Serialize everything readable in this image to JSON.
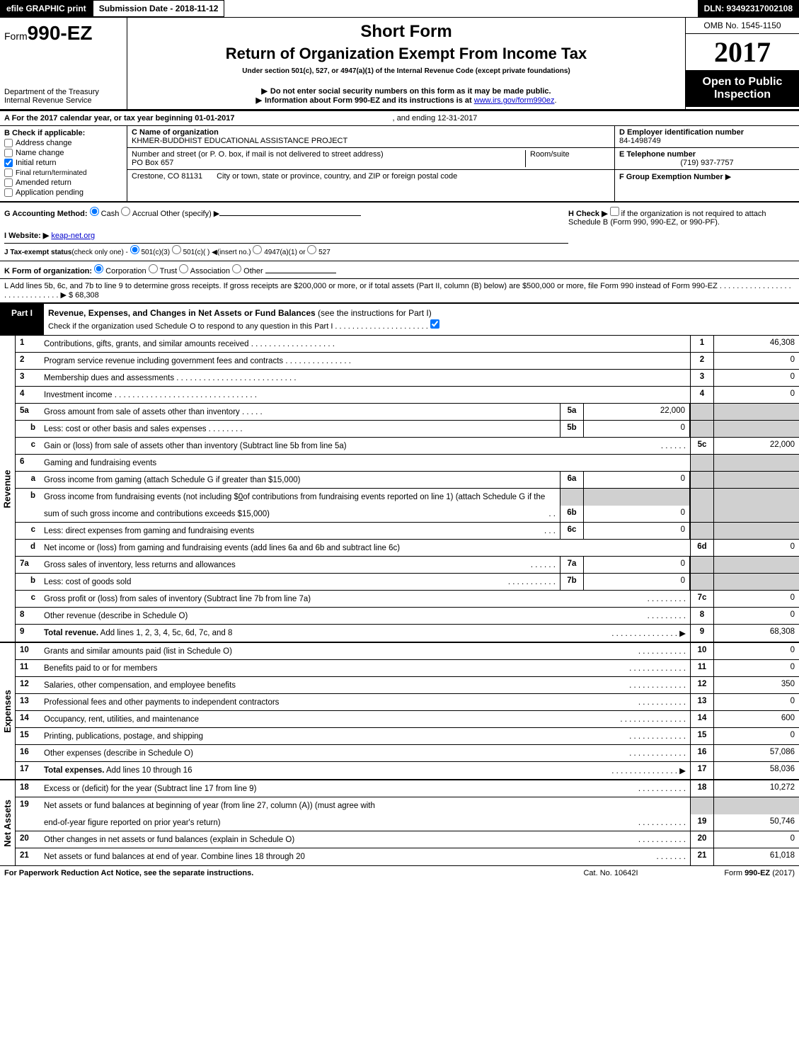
{
  "topbar": {
    "efile": "efile GRAPHIC print",
    "submission_label": "Submission Date - 2018-11-12",
    "dln": "DLN: 93492317002108"
  },
  "header": {
    "form_prefix": "Form",
    "form_number": "990-EZ",
    "dept1": "Department of the Treasury",
    "dept2": "Internal Revenue Service",
    "short_form": "Short Form",
    "return_title": "Return of Organization Exempt From Income Tax",
    "under_section": "Under section 501(c), 527, or 4947(a)(1) of the Internal Revenue Code (except private foundations)",
    "notice1": "Do not enter social security numbers on this form as it may be made public.",
    "notice2_pre": "Information about Form 990-EZ and its instructions is at ",
    "notice2_link": "www.irs.gov/form990ez",
    "notice2_post": ".",
    "omb": "OMB No. 1545-1150",
    "year": "2017",
    "open_public": "Open to Public Inspection"
  },
  "rowA": {
    "label": "A  For the 2017 calendar year, or tax year beginning 01-01-2017",
    "ending": ", and ending 12-31-2017"
  },
  "colB": {
    "label": "B  Check if applicable:",
    "items": [
      "Address change",
      "Name change",
      "Initial return",
      "Final return/terminated",
      "Amended return",
      "Application pending"
    ],
    "checked_idx": 2
  },
  "colC": {
    "c_label": "C Name of organization",
    "c_value": "KHMER-BUDDHIST EDUCATIONAL ASSISTANCE PROJECT",
    "addr_label": "Number and street (or P. O. box, if mail is not delivered to street address)",
    "room_label": "Room/suite",
    "addr_value": "PO Box 657",
    "city_value": "Crestone, CO  81131",
    "city_label": "City or town, state or province, country, and ZIP or foreign postal code"
  },
  "colD": {
    "d_label": "D Employer identification number",
    "d_value": "84-1498749",
    "e_label": "E Telephone number",
    "e_value": "(719) 937-7757",
    "f_label": "F Group Exemption Number",
    "f_arrow": "▶"
  },
  "rowG": {
    "g_label": "G Accounting Method:",
    "g_cash": "Cash",
    "g_accrual": "Accrual",
    "g_other": "Other (specify) ▶",
    "h_label": "H  Check ▶",
    "h_text": "if the organization is not required to attach Schedule B (Form 990, 990-EZ, or 990-PF).",
    "i_label": "I Website: ▶",
    "i_value": "keap-net.org",
    "j_label": "J Tax-exempt status",
    "j_text": "(check only one) -",
    "j_501c3": "501(c)(3)",
    "j_501c": "501(c)(  ) ◀(insert no.)",
    "j_4947": "4947(a)(1) or",
    "j_527": "527"
  },
  "rowK": {
    "label": "K Form of organization:",
    "corp": "Corporation",
    "trust": "Trust",
    "assoc": "Association",
    "other": "Other"
  },
  "rowL": {
    "text": "L Add lines 5b, 6c, and 7b to line 9 to determine gross receipts. If gross receipts are $200,000 or more, or if total assets (Part II, column (B) below) are $500,000 or more, file Form 990 instead of Form 990-EZ  .  .  .  .  .  .  .  .  .  .  .  .  .  .  .  .  .  .  .  .  .  .  .  .  .  .  .  .  .  .  ▶ $ 68,308"
  },
  "part1": {
    "tab": "Part I",
    "title": "Revenue, Expenses, and Changes in Net Assets or Fund Balances ",
    "title_paren": "(see the instructions for Part I)",
    "check_line": "Check if the organization used Schedule O to respond to any question in this Part I .  .  .  .  .  .  .  .  .  .  .  .  .  .  .  .  .  .  .  .  .  ."
  },
  "side_labels": {
    "revenue": "Revenue",
    "expenses": "Expenses",
    "netassets": "Net Assets"
  },
  "lines": {
    "1": {
      "desc": "Contributions, gifts, grants, and similar amounts received  .  .  .  .  .  .  .  .  .  .  .  .  .  .  .  .  .  .  .",
      "out": "46,308"
    },
    "2": {
      "desc": "Program service revenue including government fees and contracts .  .  .  .  .  .  .  .  .  .  .  .  .  .  .",
      "out": "0"
    },
    "3": {
      "desc": "Membership dues and assessments  .  .  .  .  .  .  .  .  .  .  .  .  .  .  .  .  .  .  .  .  .  .  .  .  .  .  .",
      "out": "0"
    },
    "4": {
      "desc": "Investment income  .  .  .  .  .  .  .  .  .  .  .  .  .  .  .  .  .  .  .  .  .  .  .  .  .  .  .  .  .  .  .  .",
      "out": "0"
    },
    "5a": {
      "desc": "Gross amount from sale of assets other than inventory  .  .  .  .  .",
      "mid_num": "5a",
      "mid_val": "22,000"
    },
    "5b": {
      "desc": "Less: cost or other basis and sales expenses .  .  .  .  .  .  .  .",
      "mid_num": "5b",
      "mid_val": "0"
    },
    "5c": {
      "desc": "Gain or (loss) from sale of assets other than inventory (Subtract line 5b from line 5a)",
      "dots": ".  .  .  .  .  .",
      "out": "22,000"
    },
    "6": {
      "desc": "Gaming and fundraising events"
    },
    "6a": {
      "desc": "Gross income from gaming (attach Schedule G if greater than $15,000)",
      "mid_num": "6a",
      "mid_val": "0"
    },
    "6b": {
      "desc1": "Gross income from fundraising events (not including $ ",
      "desc1u": "0",
      "desc1b": " of contributions from fundraising events reported on line 1) (attach Schedule G if the",
      "desc2": "sum of such gross income and contributions exceeds $15,000)",
      "dots": ".  .",
      "mid_num": "6b",
      "mid_val": "0"
    },
    "6c": {
      "desc": "Less: direct expenses from gaming and fundraising events",
      "dots": ".  .  .",
      "mid_num": "6c",
      "mid_val": "0"
    },
    "6d": {
      "desc": "Net income or (loss) from gaming and fundraising events (add lines 6a and 6b and subtract line 6c)",
      "out": "0"
    },
    "7a": {
      "desc": "Gross sales of inventory, less returns and allowances",
      "dots": ".  .  .  .  .  .",
      "mid_num": "7a",
      "mid_val": "0"
    },
    "7b": {
      "desc": "Less: cost of goods sold",
      "dots": ".  .  .  .  .  .  .  .  .  .  .",
      "mid_num": "7b",
      "mid_val": "0"
    },
    "7c": {
      "desc": "Gross profit or (loss) from sales of inventory (Subtract line 7b from line 7a)",
      "dots": ".  .  .  .  .  .  .  .  .",
      "out": "0"
    },
    "8": {
      "desc": "Other revenue (describe in Schedule O)",
      "dots": ".  .  .  .  .  .  .  .  .",
      "out": "0"
    },
    "9": {
      "desc": "Total revenue. Add lines 1, 2, 3, 4, 5c, 6d, 7c, and 8",
      "dots": ".  .  .  .  .  .  .  .  .  .  .  .  .  .  . ▶",
      "out": "68,308",
      "bold": true
    },
    "10": {
      "desc": "Grants and similar amounts paid (list in Schedule O)",
      "dots": ".  .  .  .  .  .  .  .  .  .  .",
      "out": "0"
    },
    "11": {
      "desc": "Benefits paid to or for members",
      "dots": ".  .  .  .  .  .  .  .  .  .  .  .  .",
      "out": "0"
    },
    "12": {
      "desc": "Salaries, other compensation, and employee benefits",
      "dots": ".  .  .  .  .  .  .  .  .  .  .  .  .",
      "out": "350"
    },
    "13": {
      "desc": "Professional fees and other payments to independent contractors",
      "dots": ".  .  .  .  .  .  .  .  .  .  .",
      "out": "0"
    },
    "14": {
      "desc": "Occupancy, rent, utilities, and maintenance",
      "dots": ".  .  .  .  .  .  .  .  .  .  .  .  .  .  .",
      "out": "600"
    },
    "15": {
      "desc": "Printing, publications, postage, and shipping",
      "dots": ".  .  .  .  .  .  .  .  .  .  .  .  .",
      "out": "0"
    },
    "16": {
      "desc": "Other expenses (describe in Schedule O)",
      "dots": ".  .  .  .  .  .  .  .  .  .  .  .  .",
      "out": "57,086"
    },
    "17": {
      "desc": "Total expenses. Add lines 10 through 16",
      "dots": ".  .  .  .  .  .  .  .  .  .  .  .  .  .  . ▶",
      "out": "58,036",
      "bold": true
    },
    "18": {
      "desc": "Excess or (deficit) for the year (Subtract line 17 from line 9)",
      "dots": ".  .  .  .  .  .  .  .  .  .  .",
      "out": "10,272"
    },
    "19": {
      "desc1": "Net assets or fund balances at beginning of year (from line 27, column (A)) (must agree with",
      "desc2": "end-of-year figure reported on prior year's return)",
      "dots": ".  .  .  .  .  .  .  .  .  .  .",
      "out": "50,746"
    },
    "20": {
      "desc": "Other changes in net assets or fund balances (explain in Schedule O)",
      "dots": ".  .  .  .  .  .  .  .  .  .  .",
      "out": "0"
    },
    "21": {
      "desc": "Net assets or fund balances at end of year. Combine lines 18 through 20",
      "dots": ".  .  .  .  .  .  .",
      "out": "61,018"
    }
  },
  "footer": {
    "left": "For Paperwork Reduction Act Notice, see the separate instructions.",
    "center": "Cat. No. 10642I",
    "right_pre": "Form ",
    "right_bold": "990-EZ",
    "right_post": " (2017)"
  }
}
